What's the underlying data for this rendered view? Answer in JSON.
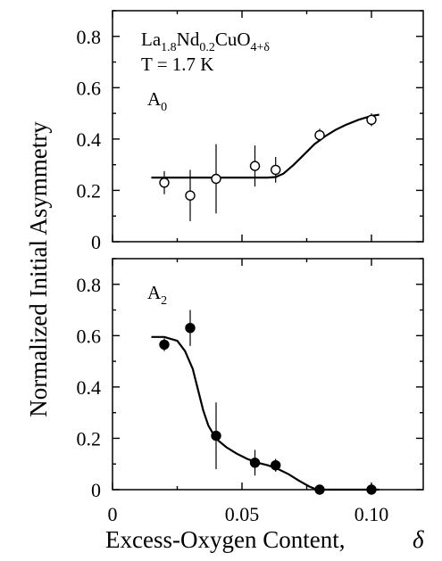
{
  "chart_data": [
    {
      "type": "scatter",
      "title": "",
      "xlabel": "Excess-Oxygen Content,",
      "xlabel_symbol": "δ",
      "ylabel": "Normalized Initial Asymmetry",
      "xlim": [
        0,
        0.12
      ],
      "ylim": [
        0,
        0.9
      ],
      "xticks": [
        0,
        0.05,
        0.1
      ],
      "xtick_labels": [
        "0",
        "0.05",
        "0.10"
      ],
      "yticks": [
        0,
        0.2,
        0.4,
        0.6,
        0.8
      ],
      "ytick_labels": [
        "0",
        "0.2",
        "0.4",
        "0.6",
        "0.8"
      ],
      "marker": "open-circle",
      "annotations": {
        "compound": {
          "base1": "La",
          "sub1": "1.8",
          "base2": "Nd",
          "sub2": "0.2",
          "base3": "CuO",
          "sub3": "4+δ"
        },
        "temperature": "T = 1.7 K",
        "series_label": {
          "base": "A",
          "sub": "0"
        }
      },
      "series": [
        {
          "x": [
            0.02,
            0.03,
            0.04,
            0.055,
            0.063,
            0.08,
            0.1
          ],
          "y": [
            0.23,
            0.18,
            0.245,
            0.295,
            0.28,
            0.415,
            0.475
          ],
          "y_err": [
            0.045,
            0.1,
            0.135,
            0.08,
            0.05,
            0.025,
            0.025
          ]
        }
      ],
      "fit_curve": {
        "x": [
          0.015,
          0.02,
          0.03,
          0.04,
          0.05,
          0.06,
          0.063,
          0.066,
          0.07,
          0.074,
          0.078,
          0.082,
          0.086,
          0.09,
          0.095,
          0.1,
          0.103
        ],
        "y": [
          0.25,
          0.25,
          0.25,
          0.25,
          0.25,
          0.25,
          0.252,
          0.265,
          0.3,
          0.34,
          0.38,
          0.41,
          0.435,
          0.455,
          0.475,
          0.49,
          0.495
        ]
      }
    },
    {
      "type": "scatter",
      "xlim": [
        0,
        0.12
      ],
      "ylim": [
        0,
        0.9
      ],
      "xticks": [
        0,
        0.05,
        0.1
      ],
      "yticks": [
        0,
        0.2,
        0.4,
        0.6,
        0.8
      ],
      "ytick_labels": [
        "0",
        "0.2",
        "0.4",
        "0.6",
        "0.8"
      ],
      "marker": "filled-circle",
      "annotations": {
        "series_label": {
          "base": "A",
          "sub": "2"
        }
      },
      "series": [
        {
          "x": [
            0.02,
            0.03,
            0.04,
            0.055,
            0.063,
            0.08,
            0.1
          ],
          "y": [
            0.565,
            0.63,
            0.21,
            0.105,
            0.095,
            0.0,
            0.0
          ],
          "y_err": [
            0.025,
            0.07,
            0.13,
            0.05,
            0.025,
            0.0,
            0.0
          ]
        }
      ],
      "fit_curve": {
        "x": [
          0.015,
          0.02,
          0.025,
          0.028,
          0.031,
          0.033,
          0.035,
          0.037,
          0.039,
          0.041,
          0.044,
          0.048,
          0.052,
          0.056,
          0.06,
          0.064,
          0.068,
          0.072,
          0.076,
          0.079,
          0.082,
          0.09,
          0.1,
          0.103
        ],
        "y": [
          0.595,
          0.595,
          0.58,
          0.54,
          0.47,
          0.39,
          0.31,
          0.25,
          0.215,
          0.19,
          0.165,
          0.14,
          0.12,
          0.105,
          0.095,
          0.08,
          0.06,
          0.035,
          0.012,
          0.0,
          0.0,
          0.0,
          0.0,
          0.0
        ]
      }
    }
  ]
}
